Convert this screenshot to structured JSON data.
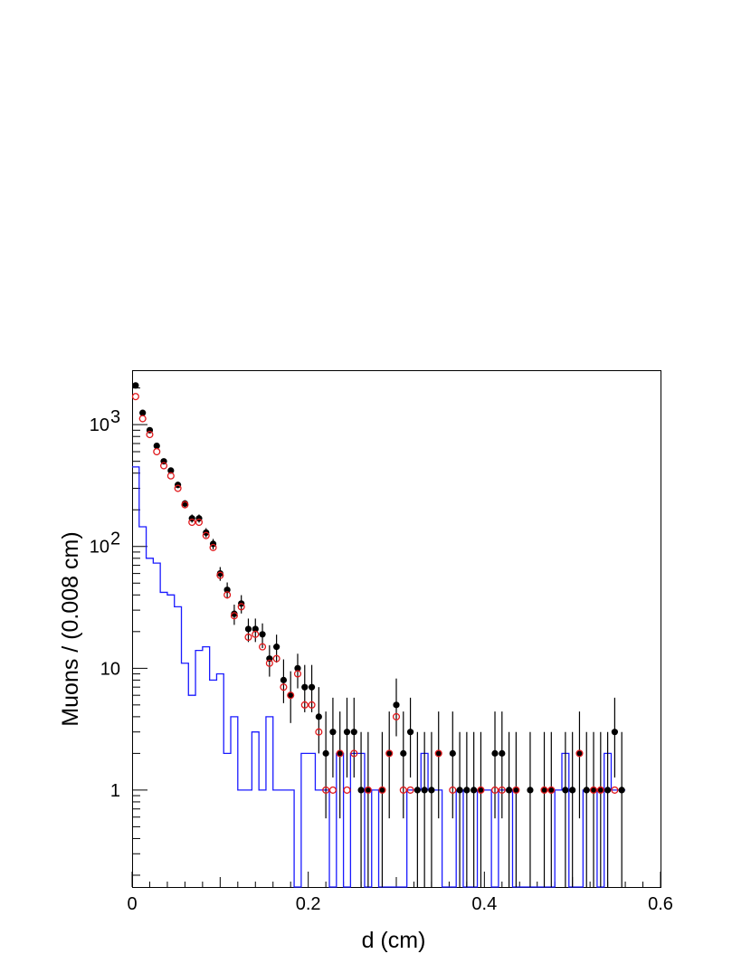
{
  "chart_data": {
    "type": "scatter",
    "title": "",
    "xlabel": "d (cm)",
    "ylabel": "Muons / (0.008 cm)",
    "xlim": [
      0,
      0.6
    ],
    "ylim": [
      0.16,
      2800
    ],
    "yscale": "log",
    "grid": false,
    "bin_width": 0.008,
    "x_ticks": [
      {
        "value": 0,
        "label": "0"
      },
      {
        "value": 0.2,
        "label": "0.2"
      },
      {
        "value": 0.4,
        "label": "0.4"
      },
      {
        "value": 0.6,
        "label": "0.6"
      }
    ],
    "y_ticks": [
      {
        "value": 1,
        "label": "1",
        "sup": ""
      },
      {
        "value": 10,
        "label": "10",
        "sup": ""
      },
      {
        "value": 100,
        "label": "10",
        "sup": "2"
      },
      {
        "value": 1000,
        "label": "10",
        "sup": "3"
      }
    ],
    "series": [
      {
        "style": "filled-circle-errorbars",
        "color": "#000000",
        "x": [
          0.004,
          0.012,
          0.02,
          0.028,
          0.036,
          0.044,
          0.052,
          0.06,
          0.068,
          0.076,
          0.084,
          0.092,
          0.1,
          0.108,
          0.116,
          0.124,
          0.132,
          0.14,
          0.148,
          0.156,
          0.164,
          0.172,
          0.18,
          0.188,
          0.196,
          0.204,
          0.212,
          0.22,
          0.228,
          0.236,
          0.244,
          0.252,
          0.26,
          0.268,
          0.284,
          0.292,
          0.3,
          0.308,
          0.316,
          0.324,
          0.332,
          0.34,
          0.348,
          0.364,
          0.372,
          0.38,
          0.388,
          0.396,
          0.412,
          0.42,
          0.428,
          0.436,
          0.452,
          0.468,
          0.476,
          0.492,
          0.5,
          0.508,
          0.516,
          0.524,
          0.532,
          0.54,
          0.548,
          0.556
        ],
        "y": [
          2100,
          1250,
          900,
          670,
          500,
          420,
          320,
          225,
          170,
          170,
          130,
          105,
          60,
          44,
          28,
          34,
          21,
          21,
          19,
          12,
          15,
          8,
          6,
          10,
          7,
          7,
          4,
          2,
          3,
          2,
          3,
          3,
          1,
          1,
          1,
          2,
          5,
          2,
          3,
          1,
          1,
          1,
          2,
          2,
          1,
          1,
          1,
          1,
          2,
          2,
          1,
          1,
          1,
          1,
          1,
          1,
          1,
          2,
          1,
          1,
          1,
          1,
          3,
          1
        ]
      },
      {
        "style": "open-circle",
        "color": "#e0181b",
        "x": [
          0.004,
          0.012,
          0.02,
          0.028,
          0.036,
          0.044,
          0.052,
          0.06,
          0.068,
          0.076,
          0.084,
          0.092,
          0.1,
          0.108,
          0.116,
          0.124,
          0.132,
          0.14,
          0.148,
          0.156,
          0.164,
          0.172,
          0.18,
          0.188,
          0.196,
          0.204,
          0.212,
          0.22,
          0.228,
          0.236,
          0.244,
          0.252,
          0.268,
          0.284,
          0.292,
          0.3,
          0.308,
          0.316,
          0.348,
          0.364,
          0.396,
          0.412,
          0.42,
          0.436,
          0.468,
          0.476,
          0.508,
          0.524,
          0.532,
          0.548
        ],
        "y": [
          1700,
          1120,
          830,
          600,
          460,
          380,
          300,
          220,
          158,
          158,
          123,
          98,
          58,
          40,
          27,
          32,
          18,
          19,
          15,
          11,
          12,
          7,
          6,
          9,
          5,
          5,
          3,
          1,
          1,
          2,
          1,
          2,
          1,
          1,
          2,
          4,
          1,
          1,
          2,
          1,
          1,
          1,
          1,
          1,
          1,
          1,
          2,
          1,
          1,
          1
        ]
      },
      {
        "style": "histogram-step",
        "color": "#1a1aff",
        "bin_edges_start": 0,
        "values": [
          450,
          145,
          80,
          73,
          42,
          40,
          32,
          11,
          6,
          14,
          15,
          8,
          9,
          2,
          4,
          1,
          1,
          3,
          1,
          4,
          1,
          1,
          1,
          0,
          2,
          2,
          1,
          1,
          0,
          2,
          0,
          2,
          2,
          0,
          1,
          0,
          0,
          0,
          0,
          1,
          1,
          2,
          1,
          1,
          0,
          0,
          1,
          0,
          0,
          1,
          1,
          0,
          1,
          1,
          0,
          0,
          0,
          0,
          0,
          0,
          1,
          2,
          0,
          0,
          1,
          1,
          0,
          2,
          1,
          1
        ]
      }
    ]
  }
}
